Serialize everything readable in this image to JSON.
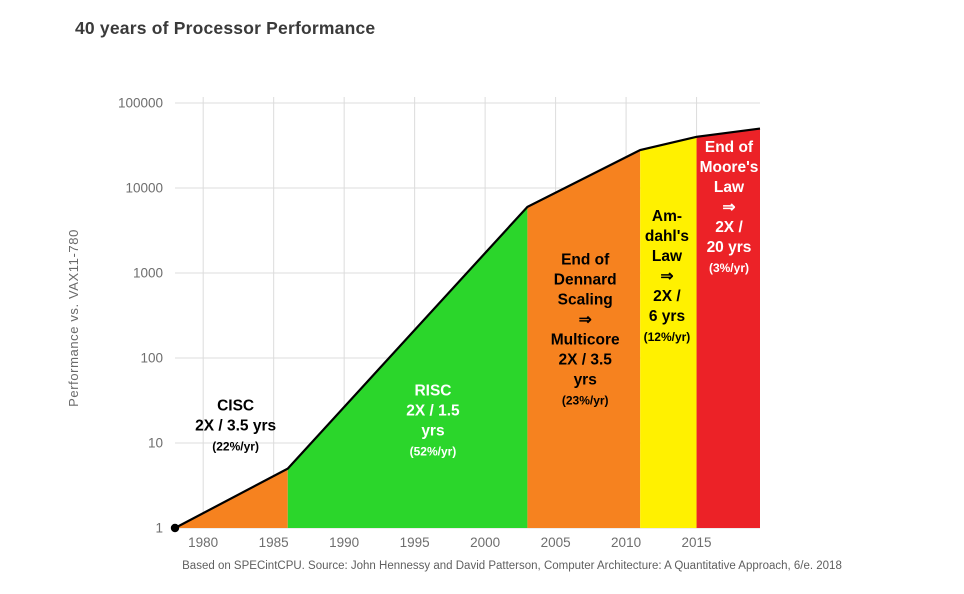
{
  "title": "40 years of Processor Performance",
  "footer": "Based on SPECintCPU. Source: John Hennessy and David Patterson, Computer Architecture: A Quantitative Approach, 6/e. 2018",
  "chart_data": {
    "type": "area",
    "title": "40 years of Processor Performance",
    "ylabel": "Performance vs. VAX11-780",
    "xlabel": "",
    "y_scale": "log",
    "grid": true,
    "x_range": [
      1978,
      2019.5
    ],
    "y_range": [
      1,
      100000
    ],
    "x_ticks": [
      1980,
      1985,
      1990,
      1995,
      2000,
      2005,
      2010,
      2015
    ],
    "y_ticks": [
      1,
      10,
      100,
      1000,
      10000,
      100000
    ],
    "line_color": "#000000",
    "eras": [
      {
        "name": "CISC",
        "color": "#F6821F",
        "x": [
          1978,
          1986
        ],
        "y": [
          1,
          5
        ],
        "rate_label": [
          "CISC",
          "2X / 3.5 yrs"
        ],
        "rate_sub": "(22%/yr)",
        "label_color": "#000000",
        "label_anchor": [
          1982.3,
          14
        ]
      },
      {
        "name": "RISC",
        "color": "#2BD62B",
        "x": [
          1986,
          2003
        ],
        "y": [
          5,
          6000
        ],
        "rate_label": [
          "RISC",
          "2X / 1.5",
          "yrs"
        ],
        "rate_sub": "(52%/yr)",
        "label_color": "#ffffff",
        "label_anchor": [
          1996.3,
          16
        ]
      },
      {
        "name": "Dennard",
        "color": "#F6821F",
        "x": [
          2003,
          2011
        ],
        "y": [
          6000,
          28000
        ],
        "rate_label": [
          "End of",
          "Dennard",
          "Scaling",
          "⇒",
          "Multicore",
          "2X / 3.5",
          "yrs"
        ],
        "rate_sub": "(23%/yr)",
        "label_color": "#000000",
        "label_anchor": [
          2007.1,
          190
        ]
      },
      {
        "name": "Amdahl",
        "color": "#FFF100",
        "x": [
          2011,
          2015
        ],
        "y": [
          28000,
          40000
        ],
        "rate_label": [
          "Am-",
          "dahl's",
          "Law",
          "⇒",
          "2X /",
          "6 yrs"
        ],
        "rate_sub": "(12%/yr)",
        "label_color": "#000000",
        "label_anchor": [
          2012.9,
          800
        ]
      },
      {
        "name": "Moore",
        "color": "#EC2227",
        "x": [
          2015,
          2019.5
        ],
        "y": [
          40000,
          50000
        ],
        "rate_label": [
          "End of",
          "Moore's",
          "Law",
          "⇒",
          "2X /",
          "20 yrs"
        ],
        "rate_sub": "(3%/yr)",
        "label_color": "#ffffff",
        "label_anchor": [
          2017.3,
          5200
        ]
      }
    ]
  }
}
